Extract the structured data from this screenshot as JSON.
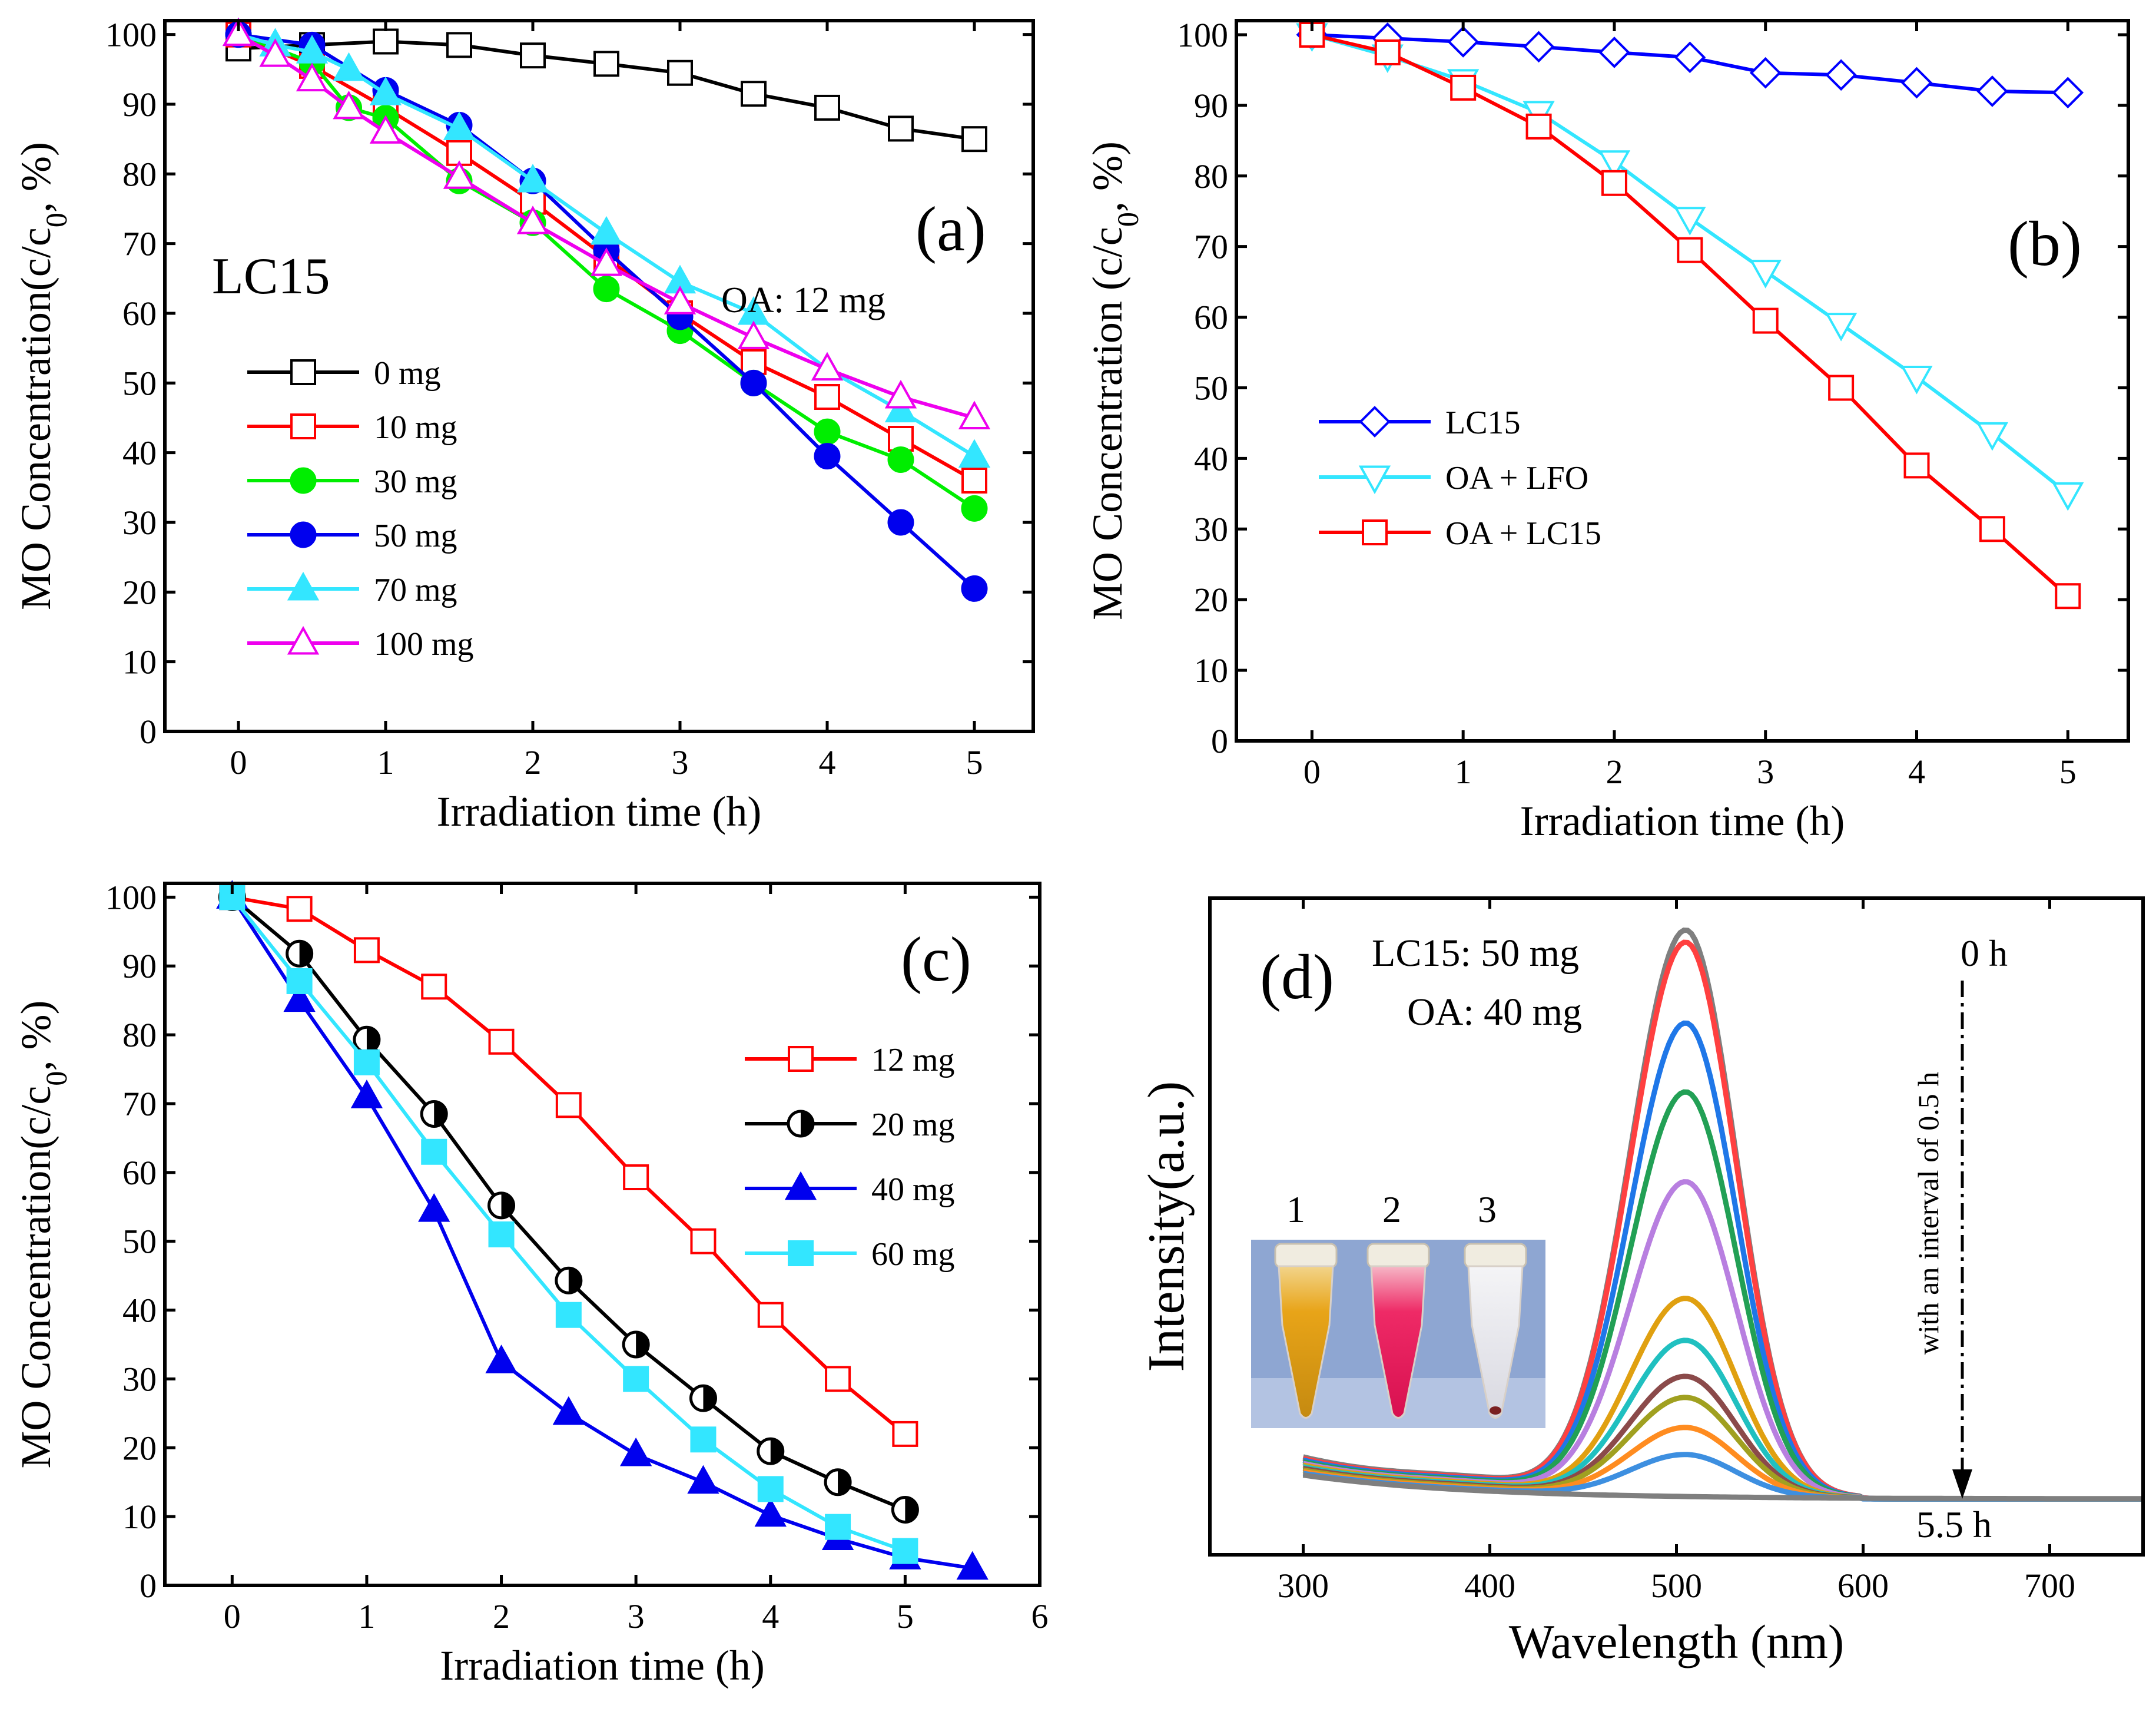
{
  "chart_data": [
    {
      "type": "line",
      "panel_label": "(a)",
      "xlabel": "Irradiation time (h)",
      "ylabel": "MO Concentration(c/c0, %)",
      "xlim": [
        -0.5,
        5.4
      ],
      "ylim": [
        0,
        102
      ],
      "xticks": [
        0,
        1,
        2,
        3,
        4,
        5
      ],
      "yticks": [
        0,
        10,
        20,
        30,
        40,
        50,
        60,
        70,
        80,
        90,
        100
      ],
      "annotations": [
        "LC15",
        "OA: 12 mg"
      ],
      "legend_position": "middle-left",
      "series": [
        {
          "name": "0 mg",
          "color": "#000000",
          "marker": "square-open",
          "x": [
            0,
            0.5,
            1,
            1.5,
            2,
            2.5,
            3,
            3.5,
            4,
            4.5,
            5
          ],
          "y": [
            98,
            98.5,
            99,
            98.5,
            97,
            95.8,
            94.5,
            91.5,
            89.5,
            86.5,
            85
          ]
        },
        {
          "name": "10 mg",
          "color": "#ff0000",
          "marker": "square-open",
          "x": [
            0,
            0.5,
            1,
            1.5,
            2,
            2.5,
            3,
            3.5,
            4,
            4.5,
            5
          ],
          "y": [
            100,
            95.5,
            89.5,
            83,
            76,
            68,
            60,
            53,
            48,
            42,
            36
          ]
        },
        {
          "name": "30 mg",
          "color": "#00ee00",
          "marker": "circle-filled",
          "x": [
            0,
            0.5,
            0.75,
            1,
            1.5,
            2,
            2.5,
            3,
            3.5,
            4,
            4.5,
            5
          ],
          "y": [
            100,
            96,
            89.5,
            88,
            79,
            73,
            63.5,
            57.5,
            50,
            43,
            39,
            32
          ]
        },
        {
          "name": "50 mg",
          "color": "#0000ee",
          "marker": "circle-filled",
          "x": [
            0,
            0.5,
            1,
            1.5,
            2,
            2.5,
            3,
            3.5,
            4,
            4.5,
            5
          ],
          "y": [
            100,
            98.5,
            92,
            87,
            79,
            69,
            59.5,
            50,
            39.5,
            30,
            20.5
          ]
        },
        {
          "name": "70 mg",
          "color": "#33e6ff",
          "marker": "triangle-up-filled",
          "x": [
            0,
            0.25,
            0.5,
            0.75,
            1,
            1.5,
            2,
            2.5,
            3,
            3.5,
            4,
            4.5,
            5
          ],
          "y": [
            100,
            98.5,
            97.5,
            95,
            91.5,
            86.5,
            79,
            71.5,
            64.5,
            60,
            52,
            46,
            39.5
          ]
        },
        {
          "name": "100 mg",
          "color": "#ee00ee",
          "marker": "triangle-up-open",
          "x": [
            0,
            0.25,
            0.5,
            0.75,
            1,
            1.5,
            2,
            2.5,
            3,
            3.5,
            4,
            4.5,
            5
          ],
          "y": [
            100,
            97,
            93.5,
            89.5,
            86,
            79.5,
            73,
            67,
            61.5,
            56.5,
            52,
            48,
            45
          ]
        }
      ]
    },
    {
      "type": "line",
      "panel_label": "(b)",
      "xlabel": "Irradiation time (h)",
      "ylabel": "MO Concentration (c/c0, %)",
      "xlim": [
        -0.5,
        5.4
      ],
      "ylim": [
        0,
        102
      ],
      "xticks": [
        0,
        1,
        2,
        3,
        4,
        5
      ],
      "yticks": [
        0,
        10,
        20,
        30,
        40,
        50,
        60,
        70,
        80,
        90,
        100
      ],
      "legend_position": "middle-left",
      "series": [
        {
          "name": "LC15",
          "color": "#0000ff",
          "marker": "diamond-open",
          "x": [
            0,
            0.5,
            1,
            1.5,
            2,
            2.5,
            3,
            3.5,
            4,
            4.5,
            5
          ],
          "y": [
            100,
            99.5,
            99,
            98.3,
            97.5,
            96.8,
            94.6,
            94.3,
            93.2,
            92,
            91.8
          ]
        },
        {
          "name": "OA + LFO",
          "color": "#33e6ff",
          "marker": "triangle-down-open",
          "x": [
            0,
            0.5,
            1,
            1.5,
            2,
            2.5,
            3,
            3.5,
            4,
            4.5,
            5
          ],
          "y": [
            100,
            97,
            93.5,
            89,
            82,
            74,
            66.5,
            59,
            51.5,
            43.5,
            35
          ]
        },
        {
          "name": "OA + LC15",
          "color": "#ff0000",
          "marker": "square-open",
          "x": [
            0,
            0.5,
            1,
            1.5,
            2,
            2.5,
            3,
            3.5,
            4,
            4.5,
            5
          ],
          "y": [
            100,
            97.5,
            92.5,
            87,
            79,
            69.5,
            59.5,
            50,
            39,
            30,
            20.5
          ]
        }
      ]
    },
    {
      "type": "line",
      "panel_label": "(c)",
      "xlabel": "Irradiation time (h)",
      "ylabel": "MO Concentration(c/c0, %)",
      "xlim": [
        -0.5,
        6
      ],
      "ylim": [
        0,
        102
      ],
      "xticks": [
        0,
        1,
        2,
        3,
        4,
        5,
        6
      ],
      "yticks": [
        0,
        10,
        20,
        30,
        40,
        50,
        60,
        70,
        80,
        90,
        100
      ],
      "legend_position": "top-right",
      "series": [
        {
          "name": "12 mg",
          "color": "#ff0000",
          "marker": "square-open",
          "x": [
            0,
            0.5,
            1,
            1.5,
            2,
            2.5,
            3,
            3.5,
            4,
            4.5,
            5
          ],
          "y": [
            100,
            98.3,
            92.3,
            87,
            79,
            69.8,
            59.3,
            50,
            39.3,
            30,
            22
          ]
        },
        {
          "name": "20 mg",
          "color": "#000000",
          "marker": "circle-half",
          "x": [
            0,
            0.5,
            1,
            1.5,
            2,
            2.5,
            3,
            3.5,
            4,
            4.5,
            5
          ],
          "y": [
            100,
            91.8,
            79.3,
            68.5,
            55.2,
            44.3,
            35,
            27.2,
            19.5,
            15,
            11
          ]
        },
        {
          "name": "40 mg",
          "color": "#0000ee",
          "marker": "triangle-up-filled",
          "x": [
            0,
            0.5,
            1,
            1.5,
            2,
            2.5,
            3,
            3.5,
            4,
            4.5,
            5,
            5.5
          ],
          "y": [
            100,
            85,
            71,
            54.5,
            32.5,
            25,
            19,
            15,
            10.2,
            6.8,
            4,
            2.5
          ]
        },
        {
          "name": "60 mg",
          "color": "#33e6ff",
          "marker": "square-filled",
          "x": [
            0,
            0.5,
            1,
            1.5,
            2,
            2.5,
            3,
            3.5,
            4,
            4.5,
            5
          ],
          "y": [
            100,
            87.8,
            76,
            63,
            51,
            39.3,
            30,
            21.2,
            14,
            8.5,
            5
          ]
        }
      ]
    },
    {
      "type": "line",
      "panel_label": "(d)",
      "xlabel": "Wavelength (nm)",
      "ylabel": "Intensity(a.u.)",
      "xlim": [
        250,
        750
      ],
      "ylim": [
        0,
        1
      ],
      "xticks": [
        300,
        400,
        500,
        600,
        700
      ],
      "annotations": [
        "LC15: 50 mg",
        "OA: 40 mg",
        "0 h",
        "5.5 h",
        "with an interval of 0.5 h"
      ],
      "inset_labels": [
        "1",
        "2",
        "3"
      ],
      "peak_wavelength_nm": 505,
      "curves": [
        {
          "time_h": 0,
          "color": "#7f7f7f",
          "peak": 0.945
        },
        {
          "time_h": 0.5,
          "color": "#ff4040",
          "peak": 0.925
        },
        {
          "time_h": 1,
          "color": "#1f77e8",
          "peak": 0.79
        },
        {
          "time_h": 1.5,
          "color": "#22a055",
          "peak": 0.675
        },
        {
          "time_h": 2,
          "color": "#b87fe0",
          "peak": 0.525
        },
        {
          "time_h": 2.5,
          "color": "#e0a010",
          "peak": 0.33
        },
        {
          "time_h": 3,
          "color": "#20c0c0",
          "peak": 0.26
        },
        {
          "time_h": 3.5,
          "color": "#8b4a4a",
          "peak": 0.2
        },
        {
          "time_h": 4,
          "color": "#a0a020",
          "peak": 0.165
        },
        {
          "time_h": 4.5,
          "color": "#ff8c20",
          "peak": 0.115
        },
        {
          "time_h": 5,
          "color": "#3d8fe0",
          "peak": 0.07
        },
        {
          "time_h": 5.5,
          "color": "#7f7f7f",
          "peak": 0.0
        }
      ]
    }
  ]
}
